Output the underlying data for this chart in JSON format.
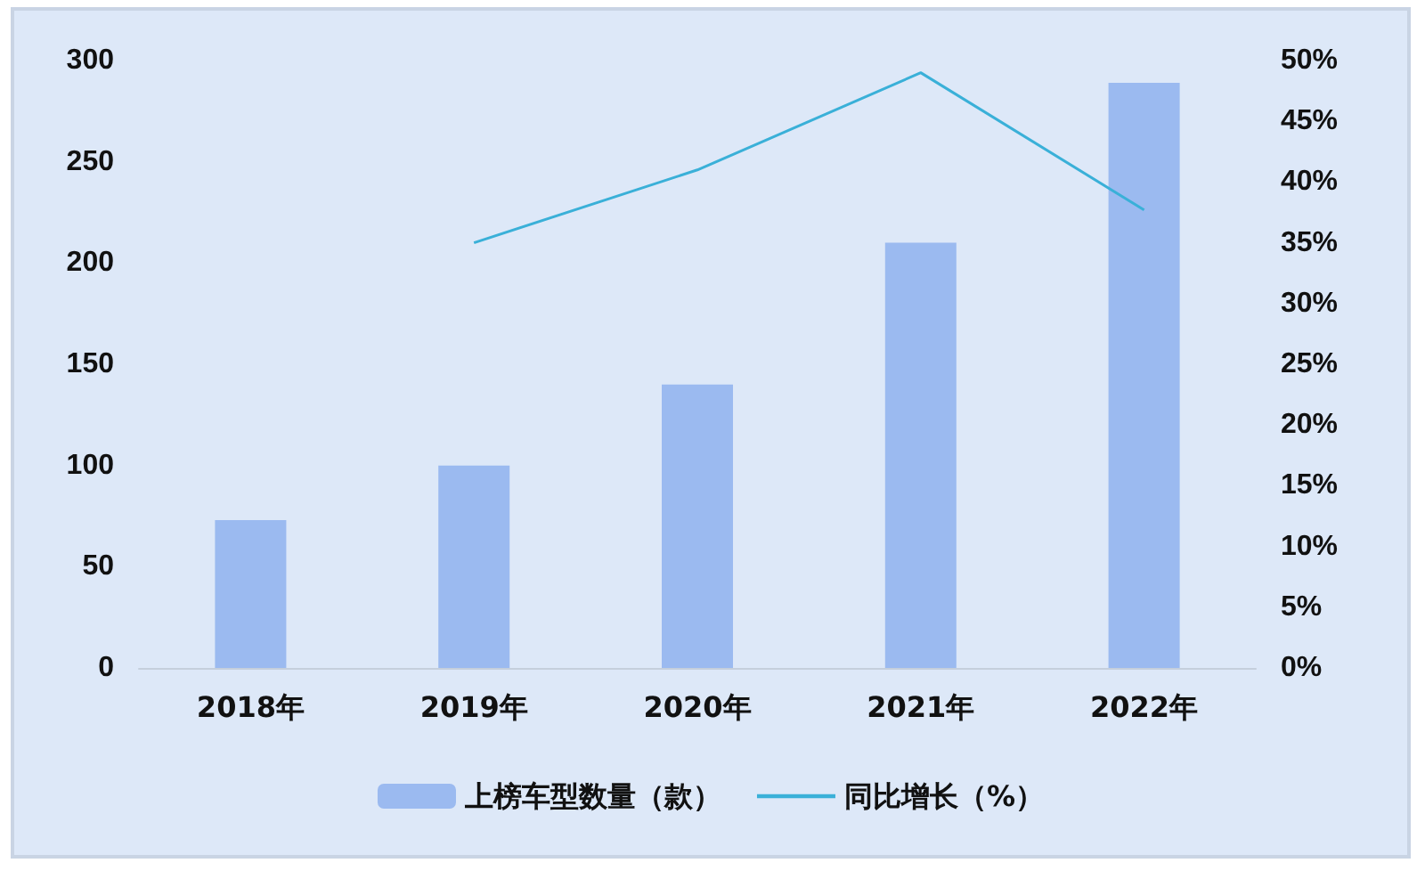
{
  "chart_data": {
    "type": "bar",
    "categories": [
      "2018年",
      "2019年",
      "2020年",
      "2021年",
      "2022年"
    ],
    "series": [
      {
        "name": "上榜车型数量（款）",
        "color": "#9bbaf0",
        "values": [
          73,
          100,
          140,
          210,
          289
        ]
      },
      {
        "name": "同比增长（%）",
        "type": "line",
        "axis": "y2",
        "color": "#3ab0d8",
        "values": [
          null,
          35,
          41,
          49,
          37.7
        ]
      }
    ],
    "ylim": [
      0,
      300
    ],
    "yticks": [
      0,
      50,
      100,
      150,
      200,
      250,
      300
    ],
    "y2lim": [
      0,
      50
    ],
    "y2ticks": [
      {
        "value": 0,
        "label": "0%"
      },
      {
        "value": 5,
        "label": "5%"
      },
      {
        "value": 10,
        "label": "10%"
      },
      {
        "value": 15,
        "label": "15%"
      },
      {
        "value": 20,
        "label": "20%"
      },
      {
        "value": 25,
        "label": "25%"
      },
      {
        "value": 30,
        "label": "30%"
      },
      {
        "value": 35,
        "label": "35%"
      },
      {
        "value": 40,
        "label": "40%"
      },
      {
        "value": 45,
        "label": "45%"
      },
      {
        "value": 50,
        "label": "50%"
      }
    ],
    "grid": false,
    "legend": "bottom",
    "marker": "none",
    "line_style": "solid"
  }
}
